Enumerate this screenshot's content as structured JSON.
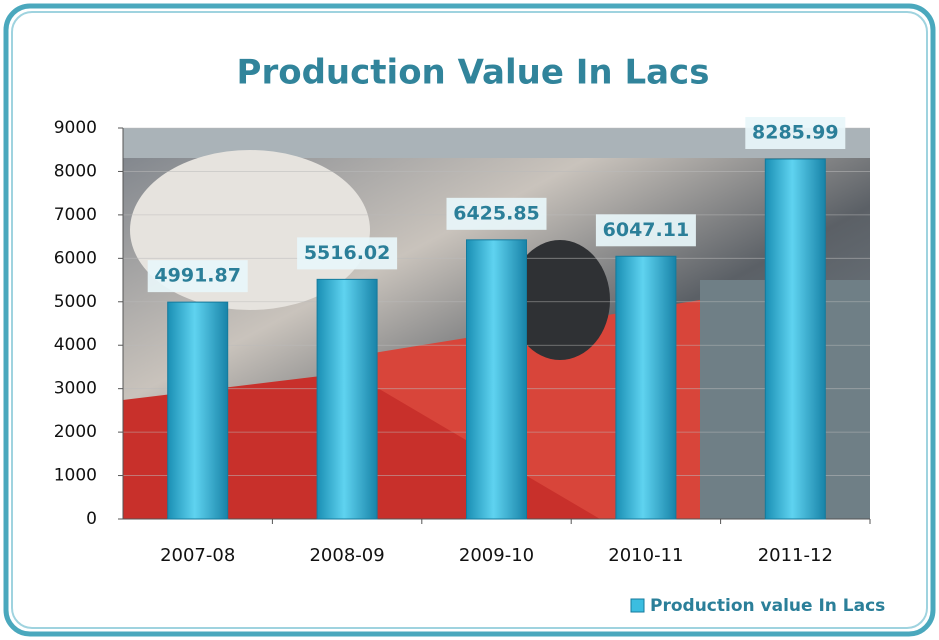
{
  "chart_data": {
    "type": "bar",
    "title": "Production Value In Lacs",
    "categories": [
      "2007-08",
      "2008-09",
      "2009-10",
      "2010-11",
      "2011-12"
    ],
    "series": [
      {
        "name": "Production value In Lacs",
        "color": "#3bbde0",
        "values": [
          4991.87,
          5516.02,
          6425.85,
          6047.11,
          8285.99
        ]
      }
    ],
    "ylim": [
      0,
      9000
    ],
    "yticks": [
      0,
      1000,
      2000,
      3000,
      4000,
      5000,
      6000,
      7000,
      8000,
      9000
    ],
    "grid": true,
    "legend": "bottom-right"
  }
}
